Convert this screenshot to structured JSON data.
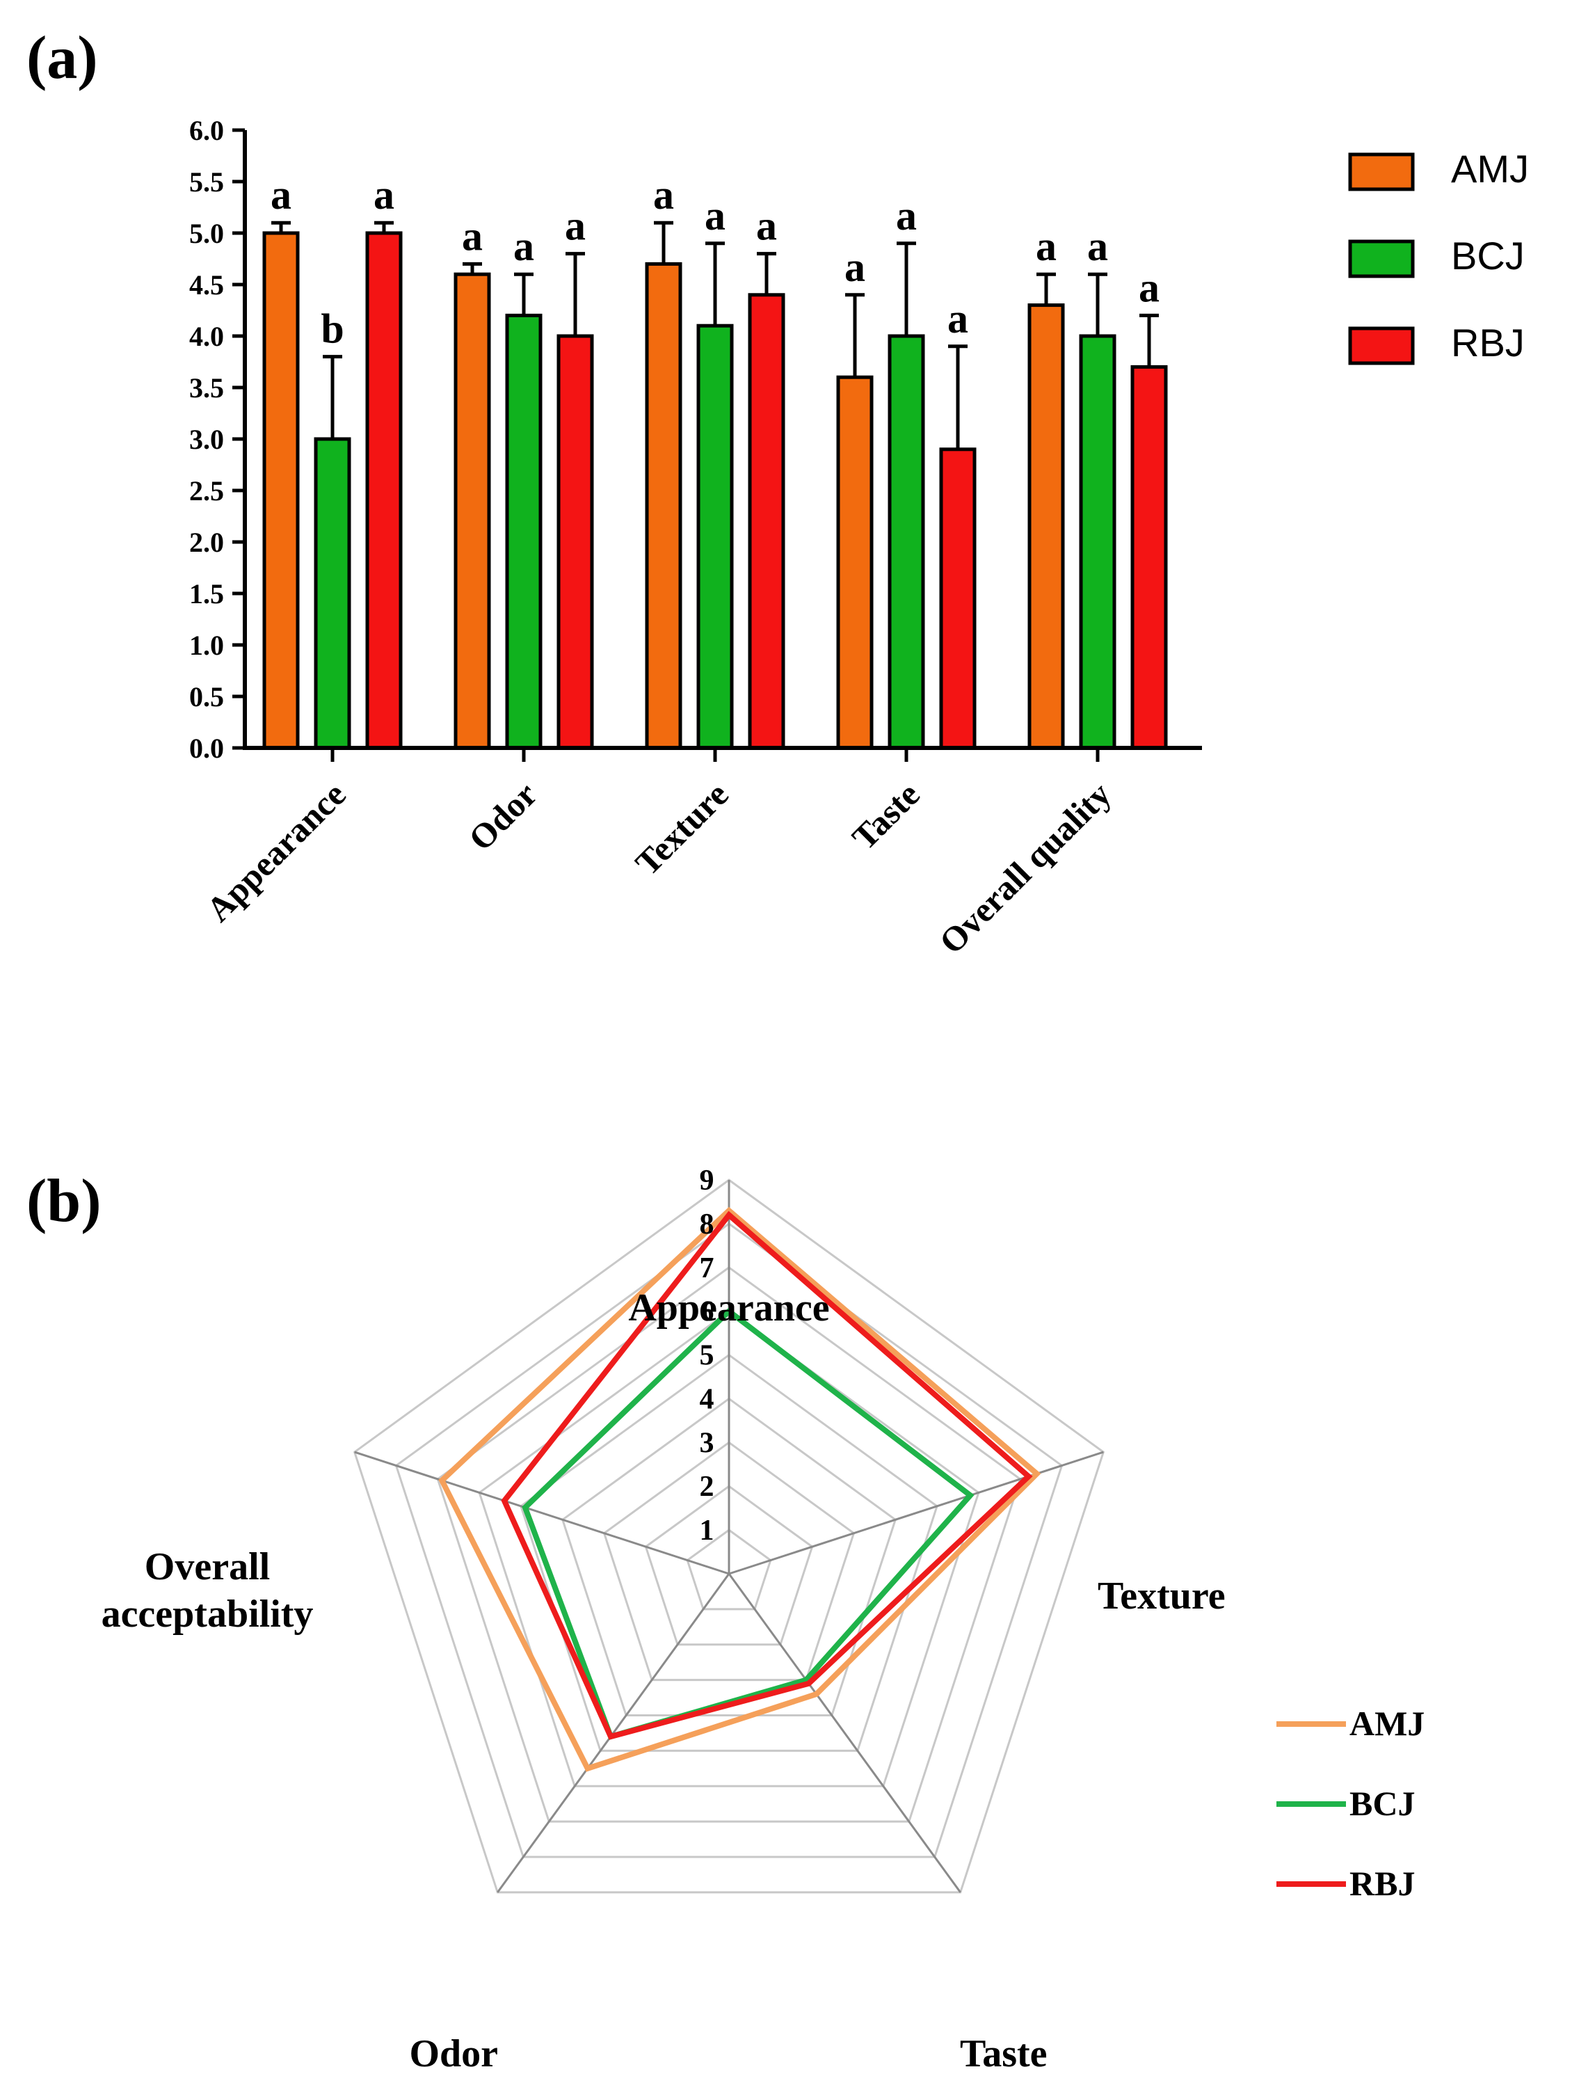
{
  "panel_a_label": "(a)",
  "panel_b_label": "(b)",
  "chart_data": [
    {
      "type": "bar",
      "title": "",
      "xlabel": "",
      "ylabel": "",
      "ylim": [
        0,
        6
      ],
      "yticks": [
        "0.0",
        "0.5",
        "1.0",
        "1.5",
        "2.0",
        "2.5",
        "3.0",
        "3.5",
        "4.0",
        "4.5",
        "5.0",
        "5.5",
        "6.0"
      ],
      "categories": [
        "Appearance",
        "Odor",
        "Texture",
        "Taste",
        "Overall quality"
      ],
      "series": [
        {
          "name": "AMJ",
          "color": "#f26b0f",
          "values": [
            5.0,
            4.6,
            4.7,
            3.6,
            4.3
          ],
          "errors": [
            0.1,
            0.1,
            0.4,
            0.8,
            0.3
          ],
          "letters": [
            "a",
            "a",
            "a",
            "a",
            "a"
          ]
        },
        {
          "name": "BCJ",
          "color": "#10b21e",
          "values": [
            3.0,
            4.2,
            4.1,
            4.0,
            4.0
          ],
          "errors": [
            0.8,
            0.4,
            0.8,
            0.9,
            0.6
          ],
          "letters": [
            "b",
            "a",
            "a",
            "a",
            "a"
          ]
        },
        {
          "name": "RBJ",
          "color": "#f41414",
          "values": [
            5.0,
            4.0,
            4.4,
            2.9,
            3.7
          ],
          "errors": [
            0.1,
            0.8,
            0.4,
            1.0,
            0.5
          ],
          "letters": [
            "a",
            "a",
            "a",
            "a",
            "a"
          ]
        }
      ],
      "legend": "right"
    },
    {
      "type": "radar",
      "title": "",
      "axes": [
        "Appearance",
        "Texture",
        "Taste",
        "Odor",
        "Overall acceptability"
      ],
      "rlim": [
        0,
        9
      ],
      "rticks": [
        "1",
        "2",
        "3",
        "4",
        "5",
        "6",
        "7",
        "8",
        "9"
      ],
      "series": [
        {
          "name": "AMJ",
          "color": "#f5a05a",
          "values": [
            8.3,
            7.4,
            3.4,
            5.5,
            6.9
          ]
        },
        {
          "name": "BCJ",
          "color": "#1fb34a",
          "values": [
            6.0,
            5.8,
            3.0,
            4.6,
            4.9
          ]
        },
        {
          "name": "RBJ",
          "color": "#ee1c1c",
          "values": [
            8.2,
            7.2,
            3.1,
            4.6,
            5.4
          ]
        }
      ],
      "legend": "bottom-right"
    }
  ]
}
